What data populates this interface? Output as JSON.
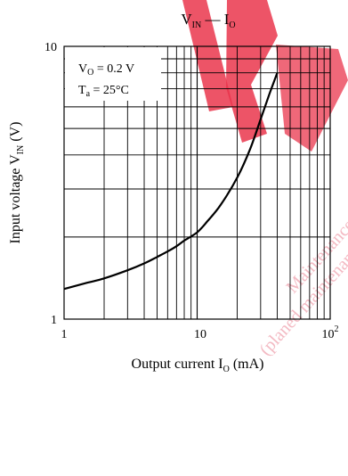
{
  "chart_data": {
    "type": "line",
    "title": {
      "main": "V",
      "main_sub": "IN",
      "dash": " — I",
      "dash_sub": "O"
    },
    "x_axis": {
      "label_main": "Output current  I",
      "label_sub": "O",
      "label_unit": "  (mA)",
      "scale": "log",
      "range": [
        1,
        100
      ],
      "tick_labels": {
        "t1": "1",
        "t10": "10",
        "t100_base": "10",
        "t100_exp": "2"
      }
    },
    "y_axis": {
      "label_main": "Input voltage  V",
      "label_sub": "IN",
      "label_unit": "  (V)",
      "scale": "log",
      "range": [
        1,
        10
      ],
      "tick_labels": {
        "t1": "1",
        "t10": "10"
      }
    },
    "conditions": {
      "line1_a": "V",
      "line1_sub": "O",
      "line1_b": " = 0.2 V",
      "line2_a": "T",
      "line2_sub": "a",
      "line2_b": " = 25°C"
    },
    "grid": true,
    "legend": "none",
    "watermark": {
      "text": "Maintenance (planned maintenance)",
      "color": "#e8203a"
    },
    "series": [
      {
        "x": [
          1,
          1.5,
          2,
          3,
          4,
          5,
          6,
          7,
          8,
          10,
          12,
          15,
          20,
          25,
          30,
          35,
          40
        ],
        "y": [
          1.29,
          1.36,
          1.41,
          1.51,
          1.6,
          1.69,
          1.77,
          1.85,
          1.94,
          2.08,
          2.29,
          2.62,
          3.3,
          4.2,
          5.4,
          6.7,
          8.0
        ]
      }
    ]
  }
}
